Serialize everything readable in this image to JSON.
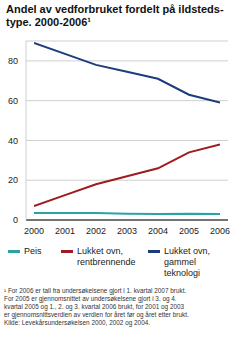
{
  "chart_data": {
    "type": "line",
    "title": [
      "Andel av vedforbruket fordelt på ildsteds-",
      "type. 2000-2006¹"
    ],
    "x": [
      2000,
      2001,
      2002,
      2003,
      2004,
      2005,
      2006
    ],
    "series": [
      {
        "name": "Peis",
        "color": "#2aa3a3",
        "values": [
          3.5,
          3.5,
          3.5,
          3.2,
          3,
          3.2,
          3
        ]
      },
      {
        "name": "Lukket ovn, rentbrennende",
        "color": "#9e1b1f",
        "values": [
          7,
          12.5,
          18,
          22,
          26,
          34,
          38
        ]
      },
      {
        "name": "Lukket ovn, gammel teknologi",
        "color": "#1d3c7e",
        "values": [
          89,
          83.5,
          78,
          74.5,
          71,
          63,
          59
        ]
      }
    ],
    "xlim": [
      2000,
      2006
    ],
    "xticks": [
      2000,
      2001,
      2002,
      2003,
      2004,
      2005,
      2006
    ],
    "ylim": [
      0,
      90
    ],
    "yticks": [
      0,
      20,
      40,
      60,
      80
    ],
    "grid": true,
    "legend": "bottom",
    "notes": [
      "¹ For 2006 er tall fra undersøkelsene gjort i 1. kvartal 2007 brukt.",
      "For 2005 er gjennomsnittet av undersøkelsene gjort i 3. og 4.",
      "kvartal 2005 og 1., 2. og 3. kvartal 2006 brukt, for 2001 og 2003",
      "er gjennomsnittsverdien av verdien for året før og året etter brukt.",
      "Kilde: Levekårsundersøkelsen 2000, 2002 og 2004."
    ]
  }
}
